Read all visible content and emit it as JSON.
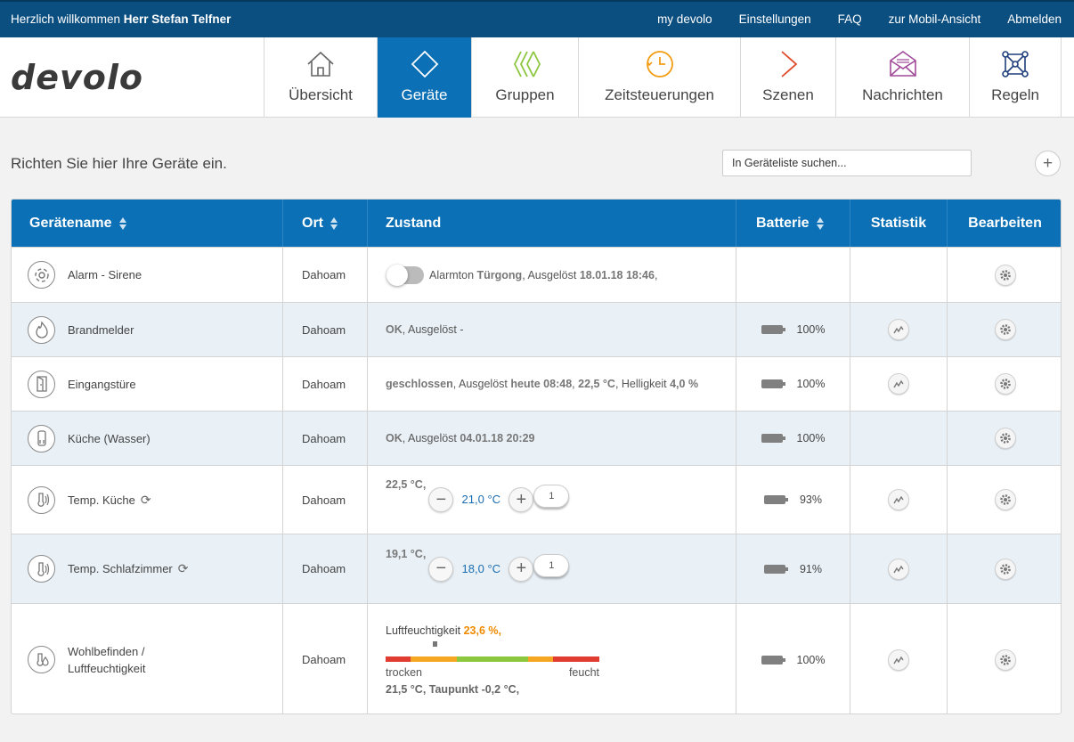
{
  "topbar": {
    "welcome_prefix": "Herzlich willkommen",
    "user": "Herr Stefan Telfner",
    "links": [
      "my devolo",
      "Einstellungen",
      "FAQ",
      "zur Mobil-Ansicht",
      "Abmelden"
    ]
  },
  "logo": "devolo",
  "nav": {
    "tabs": [
      {
        "label": "Übersicht",
        "icon": "home-icon"
      },
      {
        "label": "Geräte",
        "icon": "diamond-icon",
        "active": true
      },
      {
        "label": "Gruppen",
        "icon": "groups-icon"
      },
      {
        "label": "Zeitsteuerungen",
        "icon": "clock-icon"
      },
      {
        "label": "Szenen",
        "icon": "play-icon"
      },
      {
        "label": "Nachrichten",
        "icon": "envelope-icon"
      },
      {
        "label": "Regeln",
        "icon": "network-icon"
      }
    ]
  },
  "page": {
    "subtitle": "Richten Sie hier Ihre Geräte ein.",
    "search_placeholder": "In Geräteliste suchen...",
    "add_label": "+"
  },
  "table": {
    "headers": {
      "name": "Gerätename",
      "ort": "Ort",
      "zustand": "Zustand",
      "batterie": "Batterie",
      "statistik": "Statistik",
      "bearbeiten": "Bearbeiten"
    },
    "rows": [
      {
        "name": "Alarm - Sirene",
        "icon": "siren-icon",
        "ort": "Dahoam",
        "z1": "Alarmton",
        "z2": "Türgong",
        "z3": ", Ausgelöst",
        "z4": "18.01.18 18:46",
        "z5": ",",
        "battery": "",
        "stat": false
      },
      {
        "name": "Brandmelder",
        "icon": "flame-icon",
        "ort": "Dahoam",
        "z1": "OK",
        "z2": ", Ausgelöst -",
        "battery": "100%",
        "stat": true
      },
      {
        "name": "Eingangstüre",
        "icon": "door-icon",
        "ort": "Dahoam",
        "z1": "geschlossen",
        "z2": ", Ausgelöst",
        "z3": "heute 08:48",
        "z4": ",",
        "z5": "22,5 °C",
        "z6": ", Helligkeit",
        "z7": "4,0 %",
        "battery": "100%",
        "stat": true
      },
      {
        "name": "Küche (Wasser)",
        "icon": "water-sensor-icon",
        "ort": "Dahoam",
        "z1": "OK",
        "z2": ", Ausgelöst",
        "z3": "04.01.18 20:29",
        "battery": "100%",
        "stat": false
      },
      {
        "name": "Temp. Küche",
        "icon": "thermostat-icon",
        "ort": "Dahoam",
        "current": "22,5 °C",
        "sep": ",",
        "target": "21,0 °C",
        "pill": "1",
        "battery": "93%",
        "stat": true
      },
      {
        "name": "Temp. Schlafzimmer",
        "icon": "thermostat-icon",
        "ort": "Dahoam",
        "current": "19,1 °C",
        "sep": ",",
        "target": "18,0 °C",
        "pill": "1",
        "battery": "91%",
        "stat": true
      },
      {
        "name_line1": "Wohlbefinden /",
        "name_line2": "Luftfeuchtigkeit",
        "icon": "humidity-icon",
        "ort": "Dahoam",
        "humid_label": "Luftfeuchtigkeit",
        "humid_value": "23,6 %",
        "humid_sep": ",",
        "left": "trocken",
        "right": "feucht",
        "humid_level": 0.22,
        "temp": "21,5 °C",
        "taupunkt": ", Taupunkt -0,2 °C,",
        "battery": "100%",
        "stat": true
      }
    ]
  },
  "colors": {
    "topbar": "#0b4e80",
    "accent": "#0b70b5",
    "groups": "#8dc63f",
    "clock": "#f39c12",
    "play": "#e04b2c",
    "envelope": "#a14a9a",
    "network": "#1d3f7a",
    "humid_orange": "#f08a00"
  }
}
